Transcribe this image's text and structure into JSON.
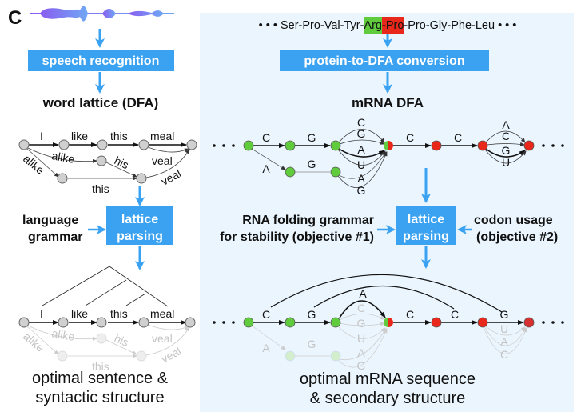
{
  "panel_letter": "C",
  "colors": {
    "box_blue": "#3ba2f2",
    "panel_bg": "#eaf5fe",
    "green_node": "#5fcb3d",
    "red_node": "#e8281b"
  },
  "left": {
    "step1": "speech recognition",
    "heading": "word lattice (DFA)",
    "lattice": {
      "w1": "I",
      "w2": "like",
      "w3": "this",
      "w4": "meal",
      "alt1": "alike",
      "alt2": "his",
      "alt3": "alike",
      "alt4": "this",
      "alt5": "veal",
      "alt6": "veal"
    },
    "grammar_line1": "language",
    "grammar_line2": "grammar",
    "parse_line1": "lattice",
    "parse_line2": "parsing",
    "caption_line1": "optimal sentence &",
    "caption_line2": "syntactic structure"
  },
  "right": {
    "seq_prefix": "• • • Ser-Pro-Val-Tyr-",
    "seq_arg": "Arg",
    "seq_dash": "-",
    "seq_pro": "Pro",
    "seq_suffix": "-Pro-Gly-Phe-Leu • • •",
    "step1": "protein-to-DFA conversion",
    "heading": "mRNA DFA",
    "dfa": {
      "e1": "C",
      "e2": "G",
      "e3": "A",
      "e4": "G",
      "b1": [
        "C",
        "G",
        "A",
        "U",
        "A",
        "G"
      ],
      "e5": "C",
      "e6": "C",
      "b2": [
        "A",
        "C",
        "G",
        "U"
      ]
    },
    "obj1_line1": "RNA folding grammar",
    "obj1_line2": "for stability (objective #1)",
    "parse_line1": "lattice",
    "parse_line2": "parsing",
    "obj2_line1": "codon usage",
    "obj2_line2": "(objective #2)",
    "result": {
      "e1": "C",
      "e2": "G",
      "arcA": "A",
      "b1": [
        "C",
        "G",
        "U",
        "A",
        "G"
      ],
      "e5": "C",
      "e6": "C",
      "e7": "G",
      "b2": [
        "U",
        "A",
        "C"
      ],
      "fa": "A",
      "fg": "G"
    },
    "caption_line1": "optimal mRNA sequence",
    "caption_line2": "& secondary structure"
  }
}
